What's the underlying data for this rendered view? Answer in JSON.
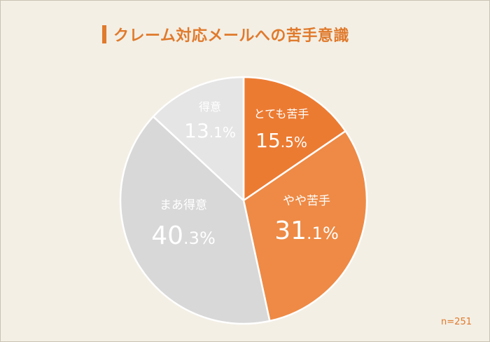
{
  "title": "クレーム対応メールへの苦手意識",
  "sample_size": "n=251",
  "chart_data": {
    "type": "pie",
    "title": "クレーム対応メールへの苦手意識",
    "slices": [
      {
        "label": "とても苦手",
        "value": 15.5,
        "main": "15",
        "dec": ".5%",
        "color": "#ec7b32",
        "text": "#ffffff"
      },
      {
        "label": "やや苦手",
        "value": 31.1,
        "main": "31",
        "dec": ".1%",
        "color": "#ee8a45",
        "text": "#ffffff"
      },
      {
        "label": "まあ得意",
        "value": 40.3,
        "main": "40",
        "dec": ".3%",
        "color": "#d8d8d8",
        "text": "#ffffff"
      },
      {
        "label": "得意",
        "value": 13.1,
        "main": "13",
        "dec": ".1%",
        "color": "#e5e5e5",
        "text": "#ffffff"
      }
    ]
  }
}
